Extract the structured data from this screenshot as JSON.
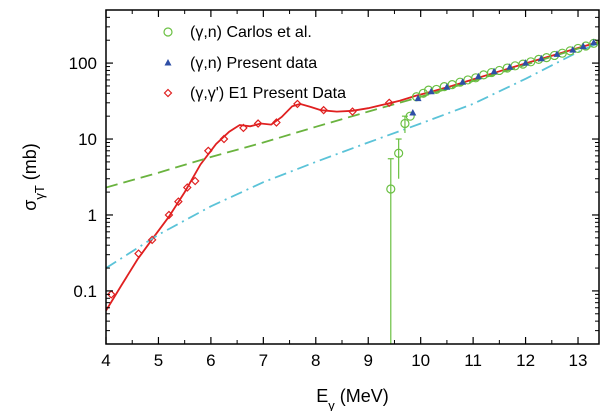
{
  "chart_data": {
    "type": "scatter",
    "title": "",
    "xlabel": "E_γ (MeV)",
    "ylabel": "σ_γT (mb)",
    "xlim": [
      4,
      13.4
    ],
    "ylim": [
      0.02,
      500
    ],
    "yscale": "log",
    "grid": false,
    "legend_position": "top-center",
    "x_ticks": [
      "4",
      "5",
      "6",
      "7",
      "8",
      "9",
      "10",
      "11",
      "12",
      "13"
    ],
    "y_ticks": [
      "0.1",
      "1",
      "10",
      "100"
    ],
    "series": [
      {
        "name": "(γ,n) Carlos et al.",
        "marker": "open-circle",
        "color": "#6ac042",
        "points": [
          {
            "x": 9.43,
            "y": 2.2,
            "err_low": 0.02,
            "err_high": 5.5
          },
          {
            "x": 9.58,
            "y": 6.5,
            "err_low": 3.0,
            "err_high": 10.0
          },
          {
            "x": 9.7,
            "y": 16,
            "err_low": 12,
            "err_high": 20
          },
          {
            "x": 9.8,
            "y": 20
          },
          {
            "x": 9.92,
            "y": 36
          },
          {
            "x": 10.05,
            "y": 40
          },
          {
            "x": 10.15,
            "y": 44
          },
          {
            "x": 10.3,
            "y": 45
          },
          {
            "x": 10.45,
            "y": 49
          },
          {
            "x": 10.6,
            "y": 52
          },
          {
            "x": 10.75,
            "y": 56
          },
          {
            "x": 10.9,
            "y": 60
          },
          {
            "x": 11.05,
            "y": 64
          },
          {
            "x": 11.2,
            "y": 70
          },
          {
            "x": 11.35,
            "y": 75
          },
          {
            "x": 11.5,
            "y": 80
          },
          {
            "x": 11.65,
            "y": 86
          },
          {
            "x": 11.8,
            "y": 92
          },
          {
            "x": 11.95,
            "y": 97
          },
          {
            "x": 12.1,
            "y": 104
          },
          {
            "x": 12.25,
            "y": 112
          },
          {
            "x": 12.4,
            "y": 118
          },
          {
            "x": 12.55,
            "y": 126
          },
          {
            "x": 12.7,
            "y": 135
          },
          {
            "x": 12.85,
            "y": 145
          },
          {
            "x": 13.0,
            "y": 156
          },
          {
            "x": 13.15,
            "y": 168
          },
          {
            "x": 13.3,
            "y": 182
          }
        ]
      },
      {
        "name": "(γ,n) Present data",
        "marker": "filled-triangle",
        "color": "#2e4fa6",
        "points": [
          {
            "x": 9.85,
            "y": 22
          },
          {
            "x": 9.95,
            "y": 34
          },
          {
            "x": 10.2,
            "y": 42
          },
          {
            "x": 10.5,
            "y": 48
          },
          {
            "x": 10.8,
            "y": 56
          },
          {
            "x": 11.1,
            "y": 66
          },
          {
            "x": 11.4,
            "y": 77
          },
          {
            "x": 11.7,
            "y": 88
          },
          {
            "x": 12.0,
            "y": 100
          },
          {
            "x": 12.3,
            "y": 114
          },
          {
            "x": 12.6,
            "y": 130
          },
          {
            "x": 12.9,
            "y": 148
          },
          {
            "x": 13.1,
            "y": 165
          },
          {
            "x": 13.3,
            "y": 185
          }
        ]
      },
      {
        "name": "(γ,γ') E1 Present Data",
        "marker": "open-diamond",
        "color": "#e02020",
        "points": [
          {
            "x": 4.1,
            "y": 0.09
          },
          {
            "x": 4.62,
            "y": 0.31
          },
          {
            "x": 4.88,
            "y": 0.47
          },
          {
            "x": 5.2,
            "y": 1.0
          },
          {
            "x": 5.38,
            "y": 1.5
          },
          {
            "x": 5.55,
            "y": 2.3
          },
          {
            "x": 5.7,
            "y": 2.8
          },
          {
            "x": 5.95,
            "y": 7.0
          },
          {
            "x": 6.25,
            "y": 10.0
          },
          {
            "x": 6.62,
            "y": 14.0
          },
          {
            "x": 6.9,
            "y": 16.0
          },
          {
            "x": 7.25,
            "y": 16.5
          },
          {
            "x": 7.65,
            "y": 29.0
          },
          {
            "x": 8.15,
            "y": 24.0
          },
          {
            "x": 8.7,
            "y": 23.0
          },
          {
            "x": 9.4,
            "y": 30.0
          }
        ]
      }
    ],
    "curves": [
      {
        "style": "solid",
        "color": "#e02020",
        "points": [
          [
            4.0,
            0.055
          ],
          [
            4.3,
            0.12
          ],
          [
            4.6,
            0.26
          ],
          [
            4.9,
            0.5
          ],
          [
            5.2,
            0.95
          ],
          [
            5.5,
            2.0
          ],
          [
            5.8,
            4.6
          ],
          [
            6.1,
            8.6
          ],
          [
            6.35,
            12.5
          ],
          [
            6.55,
            15.3
          ],
          [
            6.75,
            14.7
          ],
          [
            6.95,
            16.0
          ],
          [
            7.15,
            15.5
          ],
          [
            7.35,
            19.5
          ],
          [
            7.55,
            27.0
          ],
          [
            7.7,
            29.0
          ],
          [
            7.9,
            26.5
          ],
          [
            8.1,
            24.0
          ],
          [
            8.4,
            23.0
          ],
          [
            8.7,
            23.5
          ],
          [
            9.0,
            25.5
          ],
          [
            9.3,
            28.5
          ],
          [
            9.6,
            32.0
          ],
          [
            9.9,
            37.0
          ],
          [
            10.2,
            42.0
          ],
          [
            10.6,
            50.0
          ],
          [
            11.0,
            61.0
          ],
          [
            11.5,
            78.0
          ],
          [
            12.0,
            99.0
          ],
          [
            12.5,
            125.0
          ],
          [
            13.0,
            158.0
          ],
          [
            13.4,
            190.0
          ]
        ]
      },
      {
        "style": "dashed",
        "color": "#6ab33f",
        "points": [
          [
            4.0,
            2.3
          ],
          [
            5.0,
            3.6
          ],
          [
            6.0,
            5.8
          ],
          [
            7.0,
            9.0
          ],
          [
            8.0,
            14.5
          ],
          [
            9.0,
            23.0
          ],
          [
            10.0,
            36.0
          ],
          [
            11.0,
            58.0
          ],
          [
            12.0,
            95.0
          ],
          [
            13.0,
            155.0
          ],
          [
            13.4,
            185.0
          ]
        ]
      },
      {
        "style": "dash-dot",
        "color": "#5bc3d8",
        "points": [
          [
            4.0,
            0.2
          ],
          [
            5.0,
            0.55
          ],
          [
            6.0,
            1.3
          ],
          [
            7.0,
            2.7
          ],
          [
            8.0,
            5.0
          ],
          [
            9.0,
            9.0
          ],
          [
            10.0,
            16.0
          ],
          [
            11.0,
            29.0
          ],
          [
            12.0,
            62.0
          ],
          [
            13.0,
            140.0
          ],
          [
            13.4,
            185.0
          ]
        ]
      }
    ]
  }
}
